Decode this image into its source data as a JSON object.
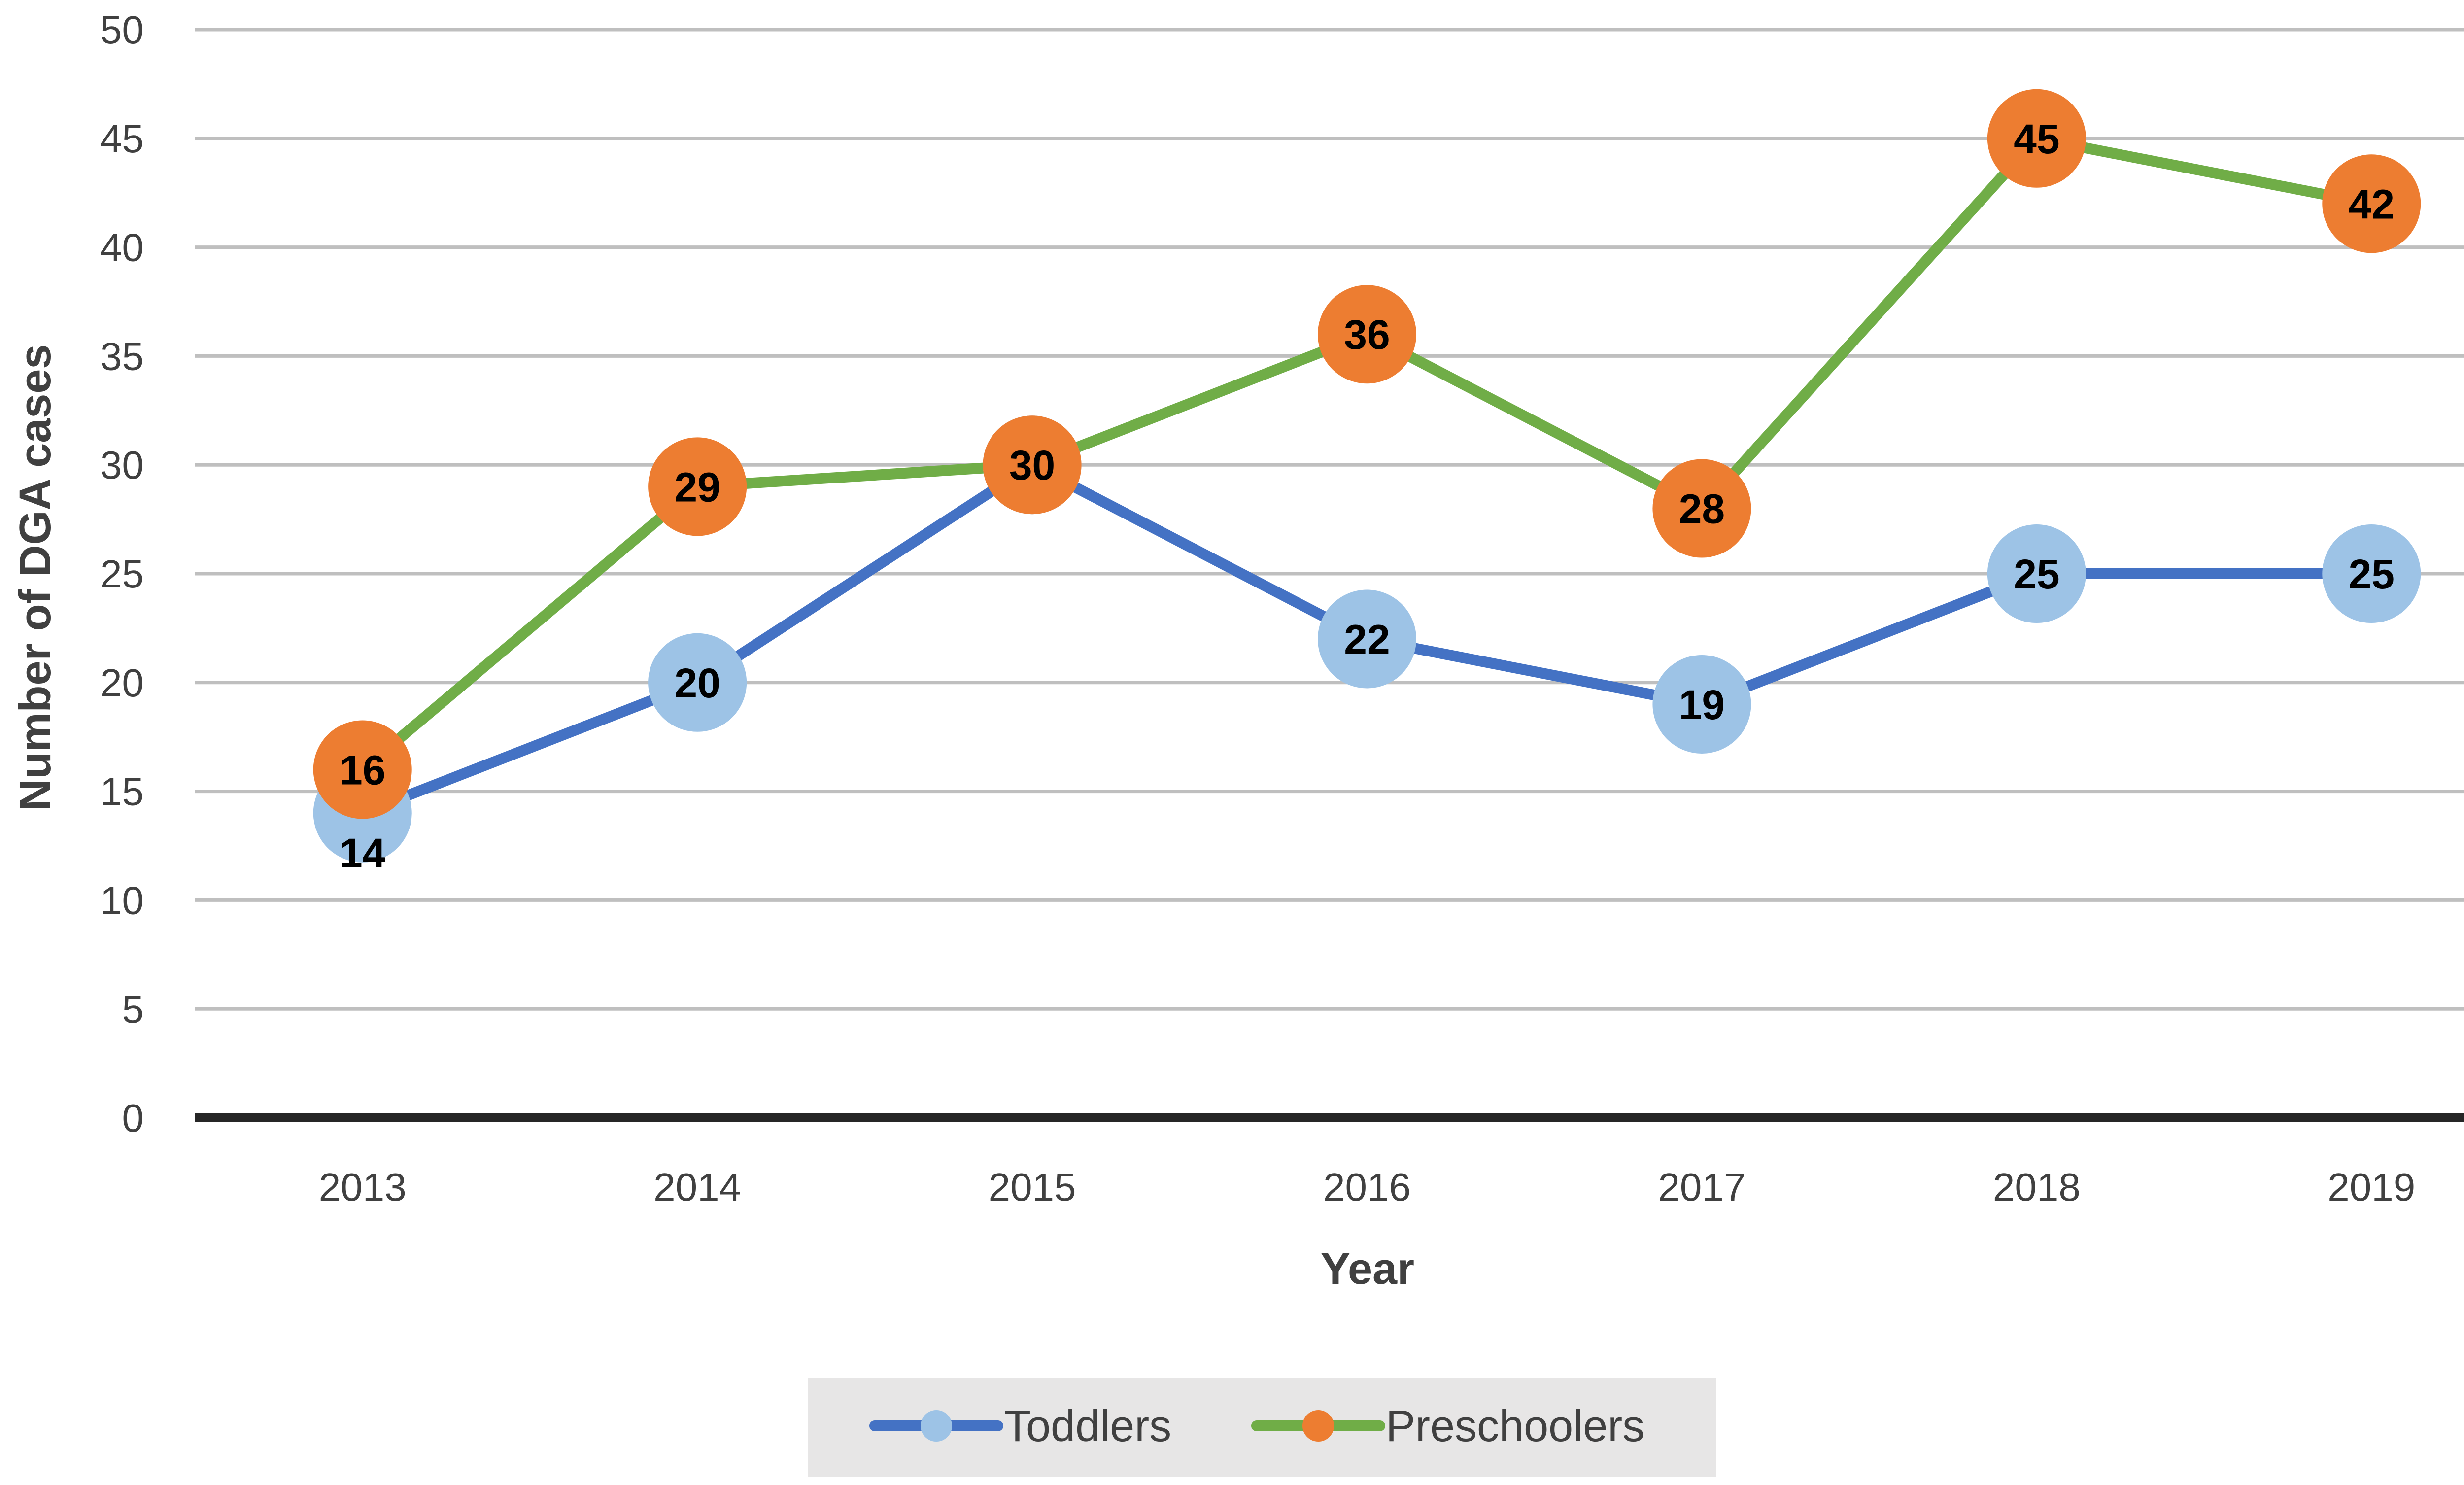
{
  "chart_data": {
    "type": "line",
    "categories": [
      "2013",
      "2014",
      "2015",
      "2016",
      "2017",
      "2018",
      "2019"
    ],
    "series": [
      {
        "name": "Toddlers",
        "values": [
          14,
          20,
          30,
          22,
          19,
          25,
          25
        ],
        "line_color": "#4472C4",
        "marker_color": "#9DC3E6"
      },
      {
        "name": "Preschoolers",
        "values": [
          16,
          29,
          30,
          36,
          28,
          45,
          42
        ],
        "line_color": "#70AD47",
        "marker_color": "#ED7D31"
      }
    ],
    "xlabel": "Year",
    "ylabel": "Number of DGA cases",
    "ylim": [
      0,
      50
    ],
    "yticks": [
      0,
      5,
      10,
      15,
      20,
      25,
      30,
      35,
      40,
      45,
      50
    ],
    "grid": true,
    "legend_position": "bottom",
    "data_labels": true,
    "legend_background": "#E7E6E6",
    "gridline_color": "#BFBFBF",
    "baseline_color": "#262626"
  }
}
